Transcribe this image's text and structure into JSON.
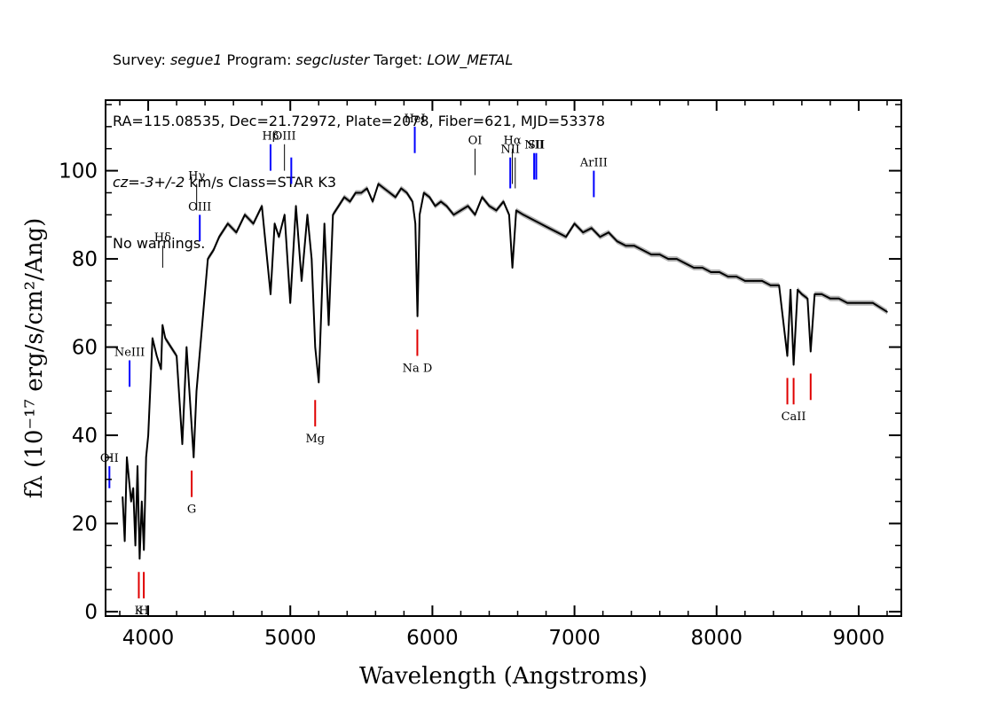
{
  "header": {
    "line1": {
      "survey_label": "Survey: ",
      "survey": "segue1",
      "program_label": " Program: ",
      "program": "segcluster",
      "target_label": " Target: ",
      "target": "LOW_METAL"
    },
    "line2": "RA=115.08535, Dec=21.72972, Plate=2078, Fiber=621, MJD=53378",
    "line3": {
      "cz": "cz=-3+/-2",
      "rest": " km/s Class=STAR K3"
    },
    "line4": "No warnings."
  },
  "chart_data": {
    "type": "line",
    "title": "",
    "xlabel": "Wavelength (Angstroms)",
    "ylabel": "fλ (10⁻¹⁷ erg/s/cm²/Ang)",
    "xlim": [
      3700,
      9300
    ],
    "ylim": [
      -1,
      116
    ],
    "x_ticks": [
      4000,
      5000,
      6000,
      7000,
      8000,
      9000
    ],
    "x_tick_labels": [
      "4000",
      "5000",
      "6000",
      "7000",
      "8000",
      "9000"
    ],
    "y_ticks": [
      0,
      20,
      40,
      60,
      80,
      100
    ],
    "y_tick_labels": [
      "0",
      "20",
      "40",
      "60",
      "80",
      "100"
    ],
    "grid": false,
    "colors": {
      "spectrum": "#000000",
      "error_band": "#b4b4b4",
      "emission": "#0000ff",
      "absorption": "#e00000",
      "emission_thin": "#000000"
    },
    "series": [
      {
        "x": [
          3820,
          3835,
          3850,
          3865,
          3880,
          3895,
          3910,
          3925,
          3940,
          3955,
          3970,
          3985,
          4000,
          4030,
          4060,
          4090,
          4101,
          4120,
          4160,
          4200,
          4240,
          4270,
          4300,
          4320,
          4340,
          4380,
          4420,
          4460,
          4500,
          4560,
          4620,
          4680,
          4740,
          4800,
          4861,
          4890,
          4920,
          4960,
          5000,
          5040,
          5080,
          5120,
          5150,
          5175,
          5200,
          5240,
          5270,
          5300,
          5340,
          5380,
          5420,
          5460,
          5500,
          5540,
          5580,
          5620,
          5660,
          5700,
          5740,
          5780,
          5820,
          5860,
          5880,
          5895,
          5910,
          5940,
          5980,
          6020,
          6060,
          6100,
          6150,
          6200,
          6250,
          6300,
          6350,
          6400,
          6450,
          6500,
          6540,
          6563,
          6590,
          6640,
          6700,
          6760,
          6820,
          6880,
          6940,
          7000,
          7060,
          7120,
          7180,
          7240,
          7300,
          7360,
          7420,
          7480,
          7540,
          7600,
          7660,
          7720,
          7780,
          7840,
          7900,
          7960,
          8020,
          8080,
          8140,
          8200,
          8260,
          8320,
          8380,
          8440,
          8498,
          8520,
          8542,
          8570,
          8600,
          8640,
          8662,
          8690,
          8740,
          8800,
          8860,
          8920,
          8980,
          9040,
          9100,
          9150,
          9200
        ],
        "y": [
          26,
          16,
          35,
          30,
          25,
          28,
          15,
          33,
          12,
          25,
          14,
          35,
          40,
          62,
          58,
          55,
          65,
          62,
          60,
          58,
          38,
          60,
          45,
          35,
          50,
          65,
          80,
          82,
          85,
          88,
          86,
          90,
          88,
          92,
          72,
          88,
          85,
          90,
          70,
          92,
          75,
          90,
          80,
          60,
          52,
          88,
          65,
          90,
          92,
          94,
          93,
          95,
          95,
          96,
          93,
          97,
          96,
          95,
          94,
          96,
          95,
          93,
          88,
          67,
          90,
          95,
          94,
          92,
          93,
          92,
          90,
          91,
          92,
          90,
          94,
          92,
          91,
          93,
          90,
          78,
          91,
          90,
          89,
          88,
          87,
          86,
          85,
          88,
          86,
          87,
          85,
          86,
          84,
          83,
          83,
          82,
          81,
          81,
          80,
          80,
          79,
          78,
          78,
          77,
          77,
          76,
          76,
          75,
          75,
          75,
          74,
          74,
          58,
          73,
          56,
          73,
          72,
          71,
          59,
          72,
          72,
          71,
          71,
          70,
          70,
          70,
          70,
          69,
          68
        ]
      }
    ],
    "emission_lines": [
      {
        "label": "OII",
        "wavelength": 3727,
        "y_low": 28,
        "y_high": 33,
        "color": "blue"
      },
      {
        "label": "NeIII",
        "wavelength": 3869,
        "y_low": 51,
        "y_high": 57,
        "color": "blue"
      },
      {
        "label": "Hδ",
        "wavelength": 4102,
        "y_low": 78,
        "y_high": 83,
        "color": "thin"
      },
      {
        "label": "Hγ",
        "wavelength": 4341,
        "y_low": 91,
        "y_high": 97,
        "color": "thin"
      },
      {
        "label": "OIII",
        "wavelength": 4363,
        "y_low": 84,
        "y_high": 90,
        "color": "blue"
      },
      {
        "label": "Hβ",
        "wavelength": 4861,
        "y_low": 100,
        "y_high": 106,
        "color": "blue"
      },
      {
        "label": "OIII",
        "wavelength": 4959,
        "y_low": 100,
        "y_high": 106,
        "color": "thin"
      },
      {
        "label": "",
        "wavelength": 5007,
        "y_low": 97,
        "y_high": 103,
        "color": "blue"
      },
      {
        "label": "HeI",
        "wavelength": 5876,
        "y_low": 104,
        "y_high": 110,
        "color": "blue"
      },
      {
        "label": "OI",
        "wavelength": 6300,
        "y_low": 99,
        "y_high": 105,
        "color": "thin"
      },
      {
        "label": "NII",
        "wavelength": 6548,
        "y_low": 96,
        "y_high": 103,
        "color": "blue"
      },
      {
        "label": "Hα",
        "wavelength": 6563,
        "y_low": 97,
        "y_high": 105,
        "color": "thin"
      },
      {
        "label": "",
        "wavelength": 6583,
        "y_low": 96,
        "y_high": 103,
        "color": "thin"
      },
      {
        "label": "NII",
        "wavelength": 6716,
        "y_low": 98,
        "y_high": 104,
        "color": "blue"
      },
      {
        "label": "SII",
        "wavelength": 6731,
        "y_low": 98,
        "y_high": 104,
        "color": "blue"
      },
      {
        "label": "ArIII",
        "wavelength": 7136,
        "y_low": 94,
        "y_high": 100,
        "color": "blue"
      }
    ],
    "absorption_lines": [
      {
        "label": "K",
        "wavelength": 3934,
        "y_low": 3,
        "y_high": 9
      },
      {
        "label": "H",
        "wavelength": 3969,
        "y_low": 3,
        "y_high": 9
      },
      {
        "label": "G",
        "wavelength": 4306,
        "y_low": 26,
        "y_high": 32
      },
      {
        "label": "Mg",
        "wavelength": 5175,
        "y_low": 42,
        "y_high": 48
      },
      {
        "label": "Na D",
        "wavelength": 5894,
        "y_low": 58,
        "y_high": 64
      },
      {
        "label": "",
        "wavelength": 8498,
        "y_low": 47,
        "y_high": 53
      },
      {
        "label": "CaII",
        "wavelength": 8542,
        "y_low": 47,
        "y_high": 53
      },
      {
        "label": "",
        "wavelength": 8662,
        "y_low": 48,
        "y_high": 54
      }
    ]
  }
}
